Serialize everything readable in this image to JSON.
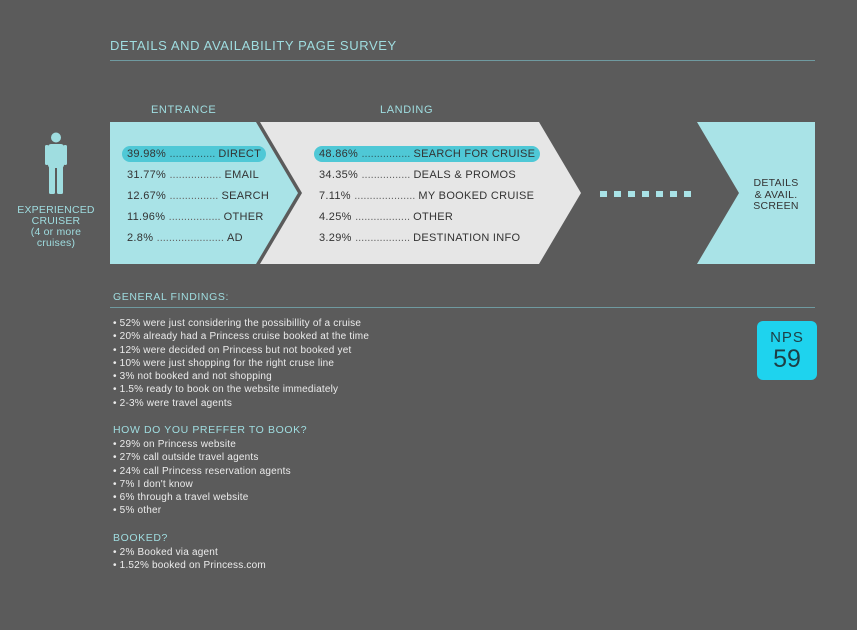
{
  "title": "DETAILS AND AVAILABILITY PAGE SURVEY",
  "columns": {
    "entrance": "ENTRANCE",
    "landing": "LANDING"
  },
  "persona": {
    "icon": "person-icon",
    "line1": "EXPERIENCED",
    "line2": "CRUISER",
    "line3": "(4 or more",
    "line4": "cruises)"
  },
  "entrance": [
    {
      "pct": "39.98%",
      "label": "DIRECT",
      "highlight": true
    },
    {
      "pct": "31.77%",
      "label": "EMAIL",
      "highlight": false
    },
    {
      "pct": "12.67%",
      "label": "SEARCH",
      "highlight": false
    },
    {
      "pct": "11.96%",
      "label": "OTHER",
      "highlight": false
    },
    {
      "pct": "2.8%",
      "label": "AD",
      "highlight": false
    }
  ],
  "landing": [
    {
      "pct": "48.86%",
      "label": "SEARCH FOR CRUISE",
      "highlight": true
    },
    {
      "pct": "34.35%",
      "label": "DEALS & PROMOS",
      "highlight": false
    },
    {
      "pct": "7.11%",
      "label": "MY BOOKED CRUISE",
      "highlight": false
    },
    {
      "pct": "4.25%",
      "label": "OTHER",
      "highlight": false
    },
    {
      "pct": "3.29%",
      "label": "DESTINATION INFO",
      "highlight": false
    }
  ],
  "destination": {
    "line1": "DETAILS",
    "line2": "& AVAIL.",
    "line3": "SCREEN"
  },
  "findings": {
    "heading": "GENERAL FINDINGS:",
    "items": [
      "• 52% were just considering the possibillity of a cruise",
      "• 20% already had a Princess cruise booked at the time",
      "• 12% were decided on Princess but not booked yet",
      "• 10% were just shopping for the right cruse line",
      "• 3% not booked and not shopping",
      "• 1.5% ready to book on the website immediately",
      "• 2-3% were travel agents"
    ]
  },
  "prefer": {
    "heading": "HOW DO YOU PREFFER TO BOOK?",
    "items": [
      "• 29% on Princess website",
      "• 27% call outside travel agents",
      "• 24% call Princess reservation agents",
      "• 7% I don't know",
      "• 6% through a travel website",
      "• 5% other"
    ]
  },
  "booked": {
    "heading": "BOOKED?",
    "items": [
      "• 2% Booked via agent",
      "• 1.52% booked on Princess.com"
    ]
  },
  "nps": {
    "label": "NPS",
    "value": "59"
  },
  "colors": {
    "background": "#5b5b5b",
    "accent": "#9fdde0",
    "entrance_fill": "#a9e3e7",
    "landing_fill": "#e6e6e6",
    "highlight": "#4fc8d6",
    "nps_fill": "#1ed3ee"
  }
}
